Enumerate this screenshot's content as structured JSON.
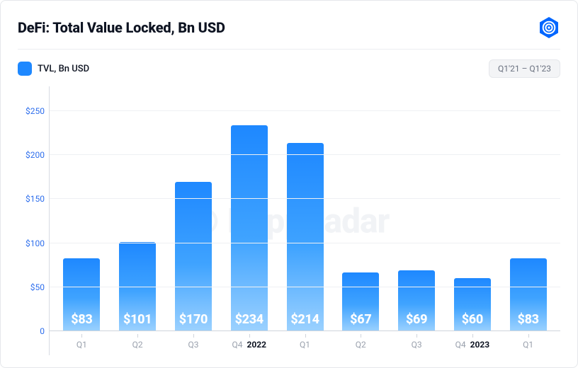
{
  "title": "DeFi: Total Value Locked, Bn USD",
  "date_range": "Q1'21 – Q1'23",
  "legend": {
    "label": "TVL, Bn USD",
    "swatch_color": "#1e88ff"
  },
  "logo_color": "#0066ff",
  "watermark": {
    "text": "DappRadar",
    "color": "#f1f3f6"
  },
  "chart": {
    "type": "bar",
    "ylim": [
      0,
      275
    ],
    "yticks": [
      0,
      50,
      100,
      150,
      200,
      250
    ],
    "ytick_prefix": "$",
    "ytick_zero_prefix": "",
    "axis_label_color": "#2f6fed",
    "grid_color": "#eef0f3",
    "baseline_color": "#cfd4dc",
    "bar_gradient_top": "#1e88ff",
    "bar_gradient_mid": "#3fa3ff",
    "bar_gradient_bottom": "#9bd1ff",
    "value_prefix": "$",
    "value_color": "#ffffff",
    "value_fontsize": 18,
    "x_label_color": "#9aa1ad",
    "x_year_color": "#0d1321",
    "categories": [
      {
        "label": "Q1",
        "year": null,
        "value": 83
      },
      {
        "label": "Q2",
        "year": null,
        "value": 101
      },
      {
        "label": "Q3",
        "year": null,
        "value": 170
      },
      {
        "label": "Q4",
        "year": "2022",
        "value": 234
      },
      {
        "label": "Q1",
        "year": null,
        "value": 214
      },
      {
        "label": "Q2",
        "year": null,
        "value": 67
      },
      {
        "label": "Q3",
        "year": null,
        "value": 69
      },
      {
        "label": "Q4",
        "year": "2023",
        "value": 60
      },
      {
        "label": "Q1",
        "year": null,
        "value": 83
      }
    ]
  }
}
